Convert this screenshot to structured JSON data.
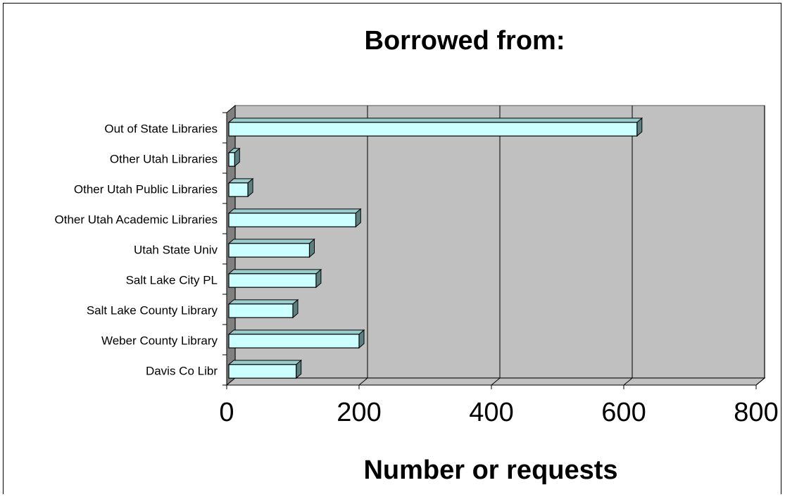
{
  "chart_data": {
    "type": "bar",
    "orientation": "horizontal",
    "style": "3d",
    "title": "Borrowed from:",
    "xlabel": "Number or requests",
    "ylabel": "",
    "xlim": [
      0,
      800
    ],
    "xticks": [
      "0",
      "200",
      "400",
      "600",
      "800"
    ],
    "grid": true,
    "legend": "none",
    "categories": [
      "Davis Co Libr",
      "Weber County Library",
      "Salt Lake County Library",
      "Salt Lake City PL",
      "Utah State Univ",
      "Other Utah Academic Libraries",
      "Other Utah Public Libraries",
      "Other Utah Libraries",
      "Out of State Libraries"
    ],
    "values": [
      105,
      200,
      100,
      135,
      125,
      195,
      32,
      12,
      620
    ],
    "colors": {
      "bar_face": "#CCFFFF",
      "bar_side": "#5E7F7F",
      "bar_top": "#99CCCC",
      "plot_wall": "#C0C0C0",
      "plot_side_wall": "#808080",
      "floor": "#C0C0C0"
    }
  }
}
